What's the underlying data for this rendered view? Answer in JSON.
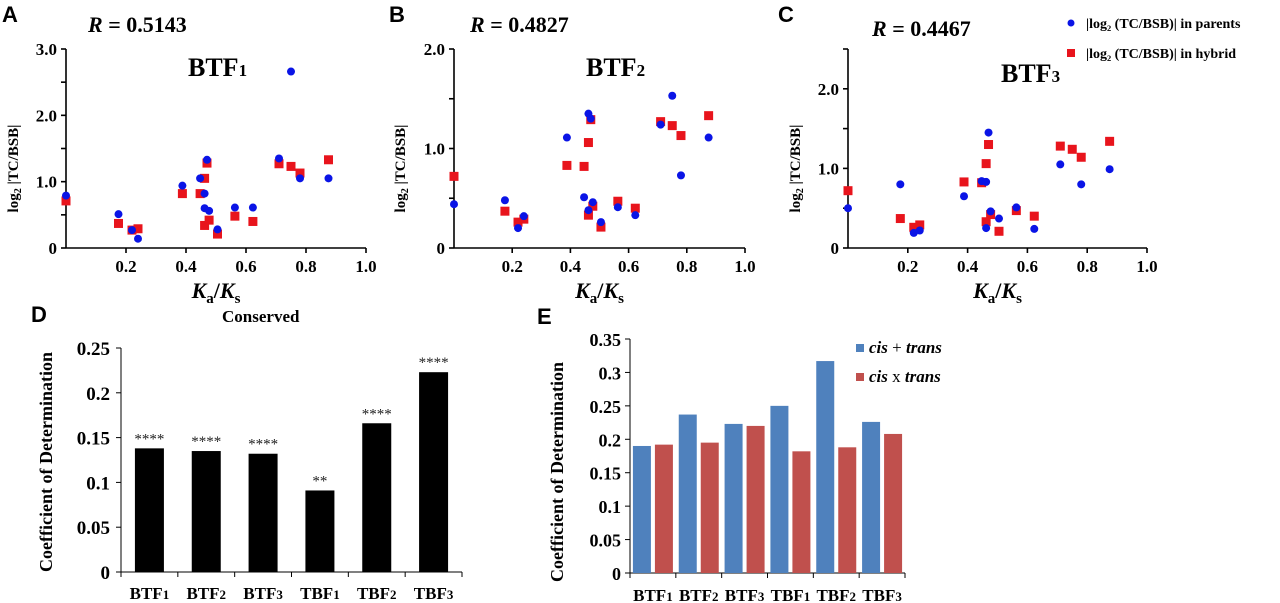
{
  "figure": {
    "legend_scatter": {
      "parents": "|log₂ (TC/BSB)| in parents",
      "hybrid": "|log₂ (TC/BSB)| in hybrid"
    },
    "colors": {
      "parents": "#0a14e6",
      "hybrid": "#e8141c",
      "cis_plus_trans": "#4f81bd",
      "cis_x_trans": "#c0504d",
      "bar_black": "#000000"
    },
    "conserved_label": "Conserved"
  },
  "chart_data": [
    {
      "panel": "A",
      "type": "scatter",
      "title": "BTF₁",
      "annotation": "R = 0.5143",
      "r_value": "0.5143",
      "xlabel": "Ka/Ks",
      "ylabel": "log₂ |TC/BSB|",
      "xlim": [
        0,
        1.0
      ],
      "ylim": [
        0,
        3.0
      ],
      "xticks": [
        0.2,
        0.4,
        0.6,
        0.8,
        1.0
      ],
      "xtick_labels": [
        "0.2",
        "0.4",
        "0.6",
        "0.8",
        "1.0"
      ],
      "yticks": [
        0,
        1.0,
        2.0,
        3.0
      ],
      "ytick_labels": [
        "0",
        "1.0",
        "2.0",
        "3.0"
      ],
      "ytick_marks": [
        0,
        0.5,
        1.0,
        1.5,
        2.0,
        2.5,
        3.0
      ],
      "series": [
        {
          "name": "|log2 (TC/BSB)| in parents",
          "marker": "circle",
          "x": [
            0.0,
            0.175,
            0.22,
            0.24,
            0.388,
            0.447,
            0.462,
            0.462,
            0.47,
            0.477,
            0.505,
            0.563,
            0.623,
            0.71,
            0.75,
            0.78,
            0.875
          ],
          "y": [
            0.79,
            0.51,
            0.27,
            0.14,
            0.94,
            1.05,
            0.82,
            0.6,
            1.33,
            0.56,
            0.28,
            0.61,
            0.61,
            1.35,
            2.66,
            1.05,
            1.05
          ]
        },
        {
          "name": "|log2 (TC/BSB)| in hybrid",
          "marker": "square",
          "x": [
            0.0,
            0.175,
            0.22,
            0.24,
            0.388,
            0.447,
            0.462,
            0.462,
            0.47,
            0.477,
            0.505,
            0.563,
            0.623,
            0.71,
            0.75,
            0.78,
            0.875
          ],
          "y": [
            0.71,
            0.37,
            0.27,
            0.29,
            0.82,
            0.82,
            1.05,
            0.34,
            1.28,
            0.42,
            0.21,
            0.48,
            0.4,
            1.27,
            1.23,
            1.13,
            1.33
          ]
        }
      ]
    },
    {
      "panel": "B",
      "type": "scatter",
      "title": "BTF₂",
      "annotation": "R = 0.4827",
      "r_value": "0.4827",
      "xlabel": "Ka/Ks",
      "ylabel": "log₂ |TC/BSB|",
      "xlim": [
        0,
        1.0
      ],
      "ylim": [
        0,
        2.0
      ],
      "xticks": [
        0.2,
        0.4,
        0.6,
        0.8,
        1.0
      ],
      "xtick_labels": [
        "0.2",
        "0.4",
        "0.6",
        "0.8",
        "1.0"
      ],
      "yticks": [
        0,
        1.0,
        2.0
      ],
      "ytick_labels": [
        "0",
        "1.0",
        "2.0"
      ],
      "ytick_marks": [
        0,
        0.5,
        1.0,
        1.5,
        2.0
      ],
      "series": [
        {
          "name": "|log2 (TC/BSB)| in parents",
          "marker": "circle",
          "x": [
            0.0,
            0.175,
            0.22,
            0.24,
            0.388,
            0.447,
            0.462,
            0.462,
            0.47,
            0.477,
            0.505,
            0.563,
            0.623,
            0.71,
            0.75,
            0.78,
            0.875
          ],
          "y": [
            0.44,
            0.48,
            0.2,
            0.32,
            1.11,
            0.51,
            1.35,
            0.38,
            1.3,
            0.46,
            0.26,
            0.41,
            0.33,
            1.24,
            1.53,
            0.73,
            1.11
          ]
        },
        {
          "name": "|log2 (TC/BSB)| in hybrid",
          "marker": "square",
          "x": [
            0.0,
            0.175,
            0.22,
            0.24,
            0.388,
            0.447,
            0.462,
            0.462,
            0.47,
            0.477,
            0.505,
            0.563,
            0.623,
            0.71,
            0.75,
            0.78,
            0.875
          ],
          "y": [
            0.72,
            0.37,
            0.26,
            0.29,
            0.83,
            0.82,
            1.06,
            0.33,
            1.29,
            0.42,
            0.21,
            0.47,
            0.4,
            1.27,
            1.23,
            1.13,
            1.33
          ]
        }
      ]
    },
    {
      "panel": "C",
      "type": "scatter",
      "title": "BTF₃",
      "annotation": "R = 0.4467",
      "r_value": "0.4467",
      "xlabel": "Ka/Ks",
      "ylabel": "log₂ |TC/BSB|",
      "xlim": [
        0,
        1.0
      ],
      "ylim": [
        0,
        2.5
      ],
      "xticks": [
        0.2,
        0.4,
        0.6,
        0.8,
        1.0
      ],
      "xtick_labels": [
        "0.2",
        "0.4",
        "0.6",
        "0.8",
        "1.0"
      ],
      "yticks": [
        0,
        1.0,
        2.0
      ],
      "ytick_labels": [
        "0",
        "1.0",
        "2.0"
      ],
      "ytick_marks": [
        0,
        0.5,
        1.0,
        1.5,
        2.0,
        2.5
      ],
      "legend": "top-right",
      "series": [
        {
          "name": "|log2 (TC/BSB)| in parents",
          "marker": "circle",
          "x": [
            0.0,
            0.175,
            0.22,
            0.24,
            0.388,
            0.447,
            0.462,
            0.462,
            0.47,
            0.477,
            0.505,
            0.563,
            0.623,
            0.71,
            0.78,
            0.875
          ],
          "y": [
            0.5,
            0.8,
            0.19,
            0.22,
            0.65,
            0.84,
            0.83,
            0.25,
            1.45,
            0.46,
            0.37,
            0.51,
            0.24,
            1.05,
            0.8,
            0.99
          ]
        },
        {
          "name": "|log2 (TC/BSB)| in hybrid",
          "marker": "square",
          "x": [
            0.0,
            0.175,
            0.22,
            0.24,
            0.388,
            0.447,
            0.462,
            0.462,
            0.47,
            0.477,
            0.505,
            0.563,
            0.623,
            0.71,
            0.75,
            0.78,
            0.875
          ],
          "y": [
            0.72,
            0.37,
            0.26,
            0.29,
            0.83,
            0.82,
            1.06,
            0.33,
            1.3,
            0.42,
            0.21,
            0.47,
            0.4,
            1.28,
            1.24,
            1.14,
            1.34
          ]
        }
      ]
    },
    {
      "panel": "D",
      "type": "bar",
      "title": "Conserved",
      "xlabel": "",
      "ylabel": "Coefficient of Determination",
      "categories": [
        "BTF₁",
        "BTF₂",
        "BTF₃",
        "TBF₁",
        "TBF₂",
        "TBF₃"
      ],
      "values": [
        0.138,
        0.135,
        0.132,
        0.091,
        0.166,
        0.223
      ],
      "significance": [
        "****",
        "****",
        "****",
        "**",
        "****",
        "****"
      ],
      "ylim": [
        0,
        0.25
      ],
      "yticks": [
        0,
        0.05,
        0.1,
        0.15,
        0.2,
        0.25
      ],
      "ytick_labels": [
        "0",
        "0.05",
        "0.1",
        "0.15",
        "0.2",
        "0.25"
      ]
    },
    {
      "panel": "E",
      "type": "bar",
      "title": "",
      "xlabel": "",
      "ylabel": "Coefficient of Determination",
      "categories": [
        "BTF₁",
        "BTF₂",
        "BTF₃",
        "TBF₁",
        "TBF₂",
        "TBF₃"
      ],
      "series": [
        {
          "name": "cis + trans",
          "values": [
            0.19,
            0.237,
            0.223,
            0.25,
            0.317,
            0.226
          ]
        },
        {
          "name": "cis x trans",
          "values": [
            0.192,
            0.195,
            0.22,
            0.182,
            0.188,
            0.208
          ]
        }
      ],
      "legend": "top-right",
      "legend_labels": [
        {
          "italic1": "cis",
          "op": " + ",
          "italic2": "trans"
        },
        {
          "italic1": "cis",
          "op": " x ",
          "italic2": "trans"
        }
      ],
      "ylim": [
        0,
        0.35
      ],
      "yticks": [
        0,
        0.05,
        0.1,
        0.15,
        0.2,
        0.25,
        0.3,
        0.35
      ],
      "ytick_labels": [
        "0",
        "0.05",
        "0.1",
        "0.15",
        "0.2",
        "0.25",
        "0.3",
        "0.35"
      ]
    }
  ]
}
